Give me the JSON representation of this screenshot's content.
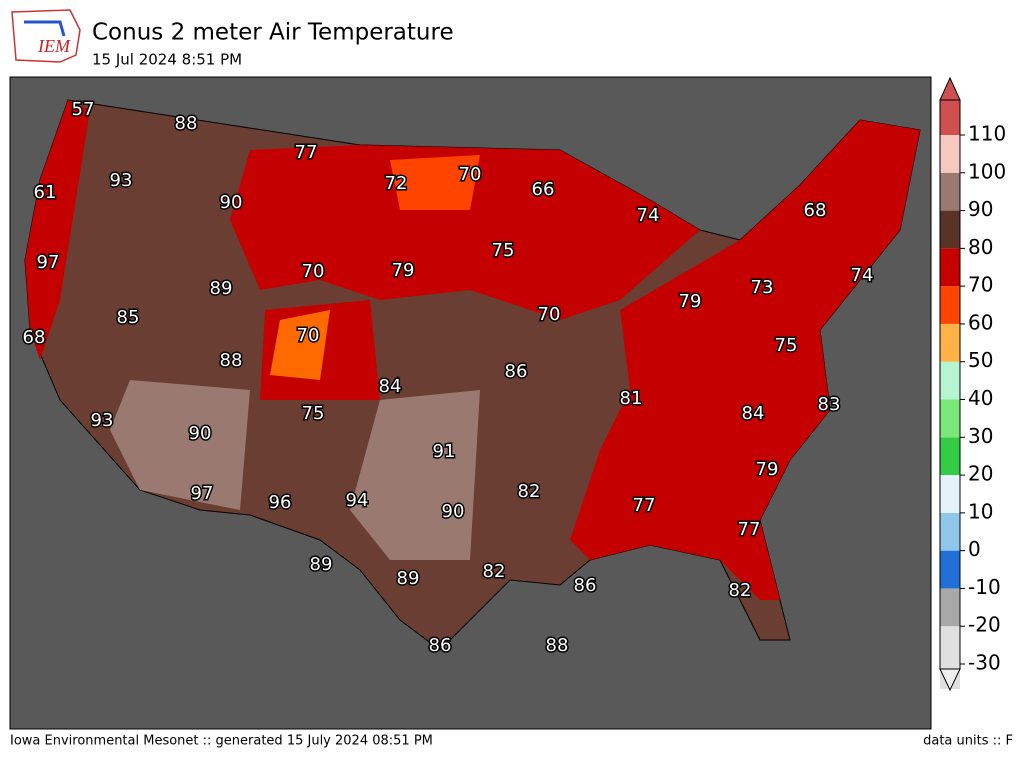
{
  "header": {
    "logo_text": "IEM",
    "title": "Conus 2 meter Air Temperature",
    "subtitle": "15 Jul 2024 8:51 PM"
  },
  "footer": {
    "credit": "Iowa Environmental Mesonet :: generated 15 July 2024 08:51 PM",
    "units": "data units :: F"
  },
  "contour_labels": [
    57,
    88,
    77,
    93,
    72,
    70,
    66,
    61,
    90,
    74,
    68,
    75,
    97,
    70,
    79,
    74,
    89,
    73,
    79,
    85,
    70,
    68,
    70,
    75,
    88,
    86,
    84,
    81,
    83,
    75,
    84,
    93,
    90,
    91,
    79,
    97,
    82,
    96,
    94,
    77,
    90,
    77,
    89,
    82,
    89,
    86,
    82,
    86,
    88
  ],
  "colorbar": {
    "ticks": [
      -30,
      -20,
      -10,
      0,
      10,
      20,
      30,
      40,
      50,
      60,
      70,
      80,
      90,
      100,
      110
    ],
    "colors": [
      "#e0e0e0",
      "#a8a8a8",
      "#1f6fd6",
      "#8fc6ea",
      "#e6f2fa",
      "#33cc44",
      "#7de87a",
      "#b5f5d2",
      "#ffb347",
      "#ff4400",
      "#c40000",
      "#5a3328",
      "#9a7a70",
      "#f5c8c0",
      "#d05050"
    ]
  }
}
